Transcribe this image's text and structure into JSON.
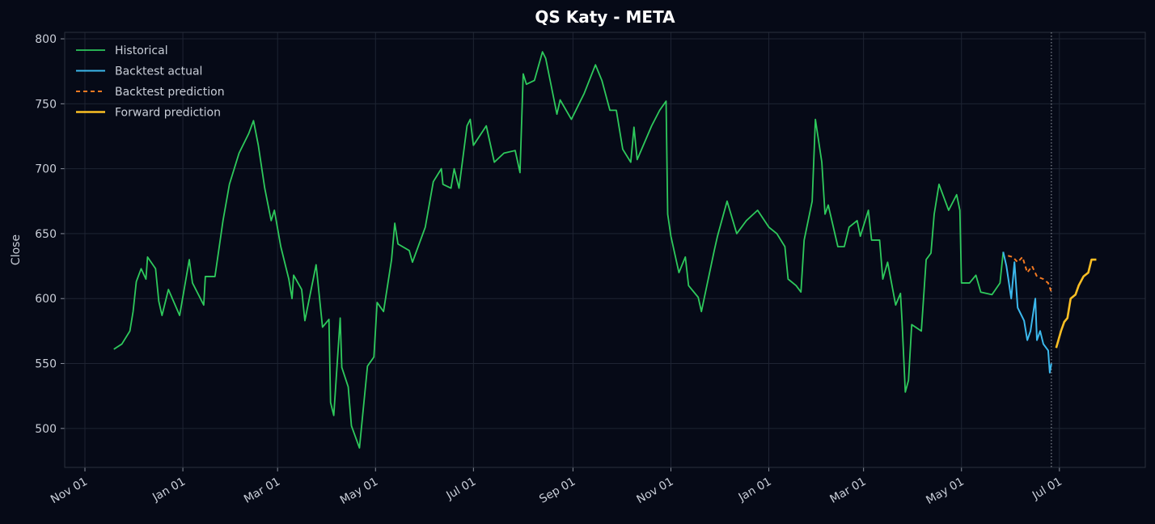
{
  "chart_data": {
    "type": "line",
    "title": "QS Katy - META",
    "y_label": "Close",
    "xlim": [
      -12.6,
      660.5
    ],
    "ylim": [
      470,
      805
    ],
    "yticks": [
      500,
      550,
      600,
      650,
      700,
      750,
      800
    ],
    "xticks": [
      {
        "value": 0,
        "label": "Nov 01"
      },
      {
        "value": 61,
        "label": "Jan 01"
      },
      {
        "value": 120,
        "label": "Mar 01"
      },
      {
        "value": 181,
        "label": "May 01"
      },
      {
        "value": 242,
        "label": "Jul 01"
      },
      {
        "value": 304,
        "label": "Sep 01"
      },
      {
        "value": 365,
        "label": "Nov 01"
      },
      {
        "value": 426,
        "label": "Jan 01"
      },
      {
        "value": 485,
        "label": "Mar 01"
      },
      {
        "value": 546,
        "label": "May 01"
      },
      {
        "value": 607,
        "label": "Jul 01"
      }
    ],
    "grid": true,
    "legend": "upper left",
    "vline_x": 602,
    "series": [
      {
        "name": "Historical",
        "color": "#2ec95c",
        "linestyle": "solid",
        "width": 1.8,
        "x": [
          18,
          23,
          28,
          30,
          32,
          35,
          38,
          39,
          44,
          46,
          48,
          52,
          59,
          65,
          67,
          74,
          75,
          81,
          86,
          90,
          96,
          102,
          105,
          108,
          112,
          116,
          118,
          122,
          127,
          129,
          130,
          135,
          137,
          144,
          148,
          152,
          153,
          155,
          159,
          160,
          164,
          166,
          171,
          176,
          180,
          182,
          186,
          191,
          193,
          195,
          202,
          204,
          212,
          217,
          222,
          223,
          228,
          230,
          233,
          238,
          240,
          242,
          250,
          255,
          261,
          268,
          271,
          273,
          275,
          280,
          285,
          287,
          294,
          296,
          303,
          311,
          318,
          322,
          327,
          331,
          335,
          340,
          342,
          344,
          353,
          358,
          362,
          363,
          365,
          370,
          374,
          376,
          382,
          384,
          392,
          394,
          400,
          406,
          412,
          419,
          426,
          431,
          436,
          438,
          443,
          446,
          448,
          453,
          455,
          459,
          461,
          463,
          469,
          473,
          476,
          481,
          483,
          488,
          490,
          495,
          497,
          500,
          505,
          508,
          509,
          511,
          513,
          515,
          521,
          524,
          527,
          529,
          532,
          538,
          543,
          545,
          546,
          551,
          555,
          558,
          565,
          570,
          572
        ],
        "values": [
          561,
          565,
          575,
          590,
          613,
          623,
          615,
          632,
          623,
          598,
          587,
          607,
          587,
          630,
          612,
          595,
          617,
          617,
          660,
          688,
          712,
          727,
          737,
          718,
          685,
          660,
          668,
          640,
          615,
          600,
          618,
          607,
          583,
          626,
          578,
          584,
          520,
          510,
          585,
          547,
          532,
          502,
          485,
          548,
          555,
          597,
          590,
          630,
          658,
          642,
          637,
          628,
          655,
          690,
          700,
          688,
          685,
          700,
          685,
          733,
          738,
          718,
          733,
          705,
          712,
          714,
          697,
          773,
          765,
          768,
          790,
          785,
          742,
          753,
          738,
          758,
          780,
          768,
          745,
          745,
          715,
          705,
          732,
          707,
          733,
          745,
          752,
          665,
          648,
          620,
          632,
          610,
          601,
          590,
          637,
          648,
          675,
          650,
          660,
          668,
          655,
          650,
          640,
          615,
          610,
          605,
          645,
          675,
          738,
          705,
          665,
          672,
          640,
          640,
          655,
          660,
          648,
          668,
          645,
          645,
          615,
          628,
          595,
          604,
          582,
          528,
          537,
          580,
          575,
          630,
          635,
          665,
          688,
          668,
          680,
          668,
          612,
          612,
          618,
          605,
          603,
          612,
          636
        ]
      },
      {
        "name": "Backtest actual",
        "color": "#3cb8ec",
        "linestyle": "solid",
        "width": 2,
        "x": [
          572,
          574,
          577,
          579,
          581,
          583,
          585,
          587,
          589,
          592,
          593,
          595,
          597,
          600,
          601,
          602
        ],
        "values": [
          636,
          625,
          600,
          628,
          593,
          588,
          583,
          568,
          575,
          600,
          568,
          575,
          565,
          560,
          543,
          550
        ]
      },
      {
        "name": "Backtest prediction",
        "color": "#f47a22",
        "linestyle": "dashed",
        "width": 2,
        "x": [
          575,
          578,
          581,
          584,
          587,
          590,
          593,
          597,
          600,
          602
        ],
        "values": [
          633,
          632,
          628,
          632,
          620,
          625,
          617,
          615,
          612,
          605
        ]
      },
      {
        "name": "Forward prediction",
        "color": "#fbbf24",
        "linestyle": "solid",
        "width": 2.6,
        "x": [
          605,
          608,
          610,
          612,
          614,
          617,
          619,
          622,
          625,
          627,
          630
        ],
        "values": [
          562,
          575,
          582,
          585,
          600,
          603,
          610,
          617,
          620,
          630,
          630
        ]
      }
    ]
  }
}
